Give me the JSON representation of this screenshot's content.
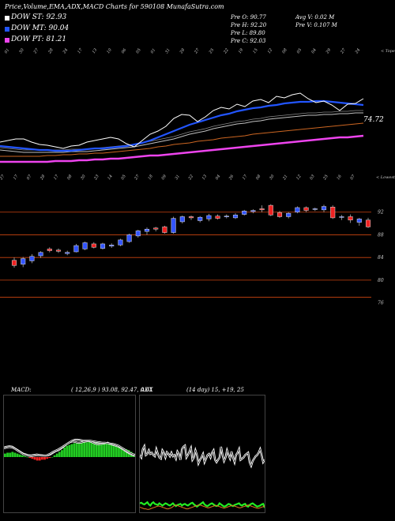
{
  "header": {
    "title": "Price,Volume,EMA,ADX,MACD Charts for 590108  MunafaSutra.com"
  },
  "legend": [
    {
      "label": "DOW ST: 92.93",
      "color": "#ffffff"
    },
    {
      "label": "DOW MT: 90.04",
      "color": "#2255ff"
    },
    {
      "label": "DOW PT: 81.21",
      "color": "#ee44ee"
    }
  ],
  "ohlc": {
    "open": "Pre   O: 90.77",
    "high": "Pre   H: 92.20",
    "low": "Pre   L: 89.80",
    "close": "Pre   C: 92.03",
    "avg_volume": "Avg V: 0.02  M",
    "prev_volume": "Pre   V: 0.107 M"
  },
  "ema_panel": {
    "top_label": "< Tope",
    "value_label": "74.72",
    "top_ticks": [
      "01",
      "30",
      "27",
      "28",
      "24",
      "17",
      "13",
      "10",
      "06",
      "05",
      "01",
      "31",
      "28",
      "27",
      "25",
      "22",
      "19",
      "15",
      "12",
      "08",
      "05",
      "04",
      "29",
      "27",
      "24"
    ],
    "colors": {
      "price": "#ffffff",
      "short": "#2255ff",
      "mid": "#c0c0c0",
      "long": "#cc6622",
      "longest": "#ee44ee"
    }
  },
  "candle_panel": {
    "top_label": "< Lowest",
    "dates": [
      "27",
      "25",
      "21",
      "17",
      "13",
      "10",
      "07",
      "04",
      "31",
      "28",
      "25",
      "22",
      "17",
      "14",
      "11",
      "08",
      "05",
      "02",
      "30",
      "29",
      "26",
      "23",
      "20",
      "17",
      "14",
      "11",
      "08",
      "05",
      "02",
      "30",
      "27",
      "24",
      "21",
      "18",
      "15",
      "12",
      "09",
      "06",
      "03",
      "31",
      "28",
      "25",
      "22",
      "19",
      "16",
      "13",
      "10",
      "07",
      "04",
      "01",
      "29",
      "26",
      "23",
      "20",
      "17",
      "14",
      "11",
      "08",
      "05",
      "02",
      "30",
      "27",
      "24",
      "21",
      "18",
      "15",
      "12",
      "09",
      "06",
      "03",
      "31",
      "28",
      "25",
      "22",
      "19",
      "16",
      "13",
      "10",
      "07",
      "04",
      "01"
    ],
    "right_ticks": [
      "92",
      "88",
      "84",
      "80",
      "76"
    ],
    "orange_lines": [
      92,
      88,
      84,
      80,
      77
    ]
  },
  "chart_data": {
    "type": "candlestick",
    "ylim": [
      74,
      96
    ],
    "candles": [
      {
        "o": 83.5,
        "h": 84.0,
        "l": 82.2,
        "c": 82.6,
        "up": false
      },
      {
        "o": 82.8,
        "h": 84.1,
        "l": 82.3,
        "c": 83.8,
        "up": true
      },
      {
        "o": 83.4,
        "h": 84.6,
        "l": 83.0,
        "c": 84.2,
        "up": true
      },
      {
        "o": 84.3,
        "h": 85.1,
        "l": 83.9,
        "c": 84.9,
        "up": true
      },
      {
        "o": 85.5,
        "h": 85.8,
        "l": 84.9,
        "c": 85.2,
        "up": false
      },
      {
        "o": 85.3,
        "h": 85.6,
        "l": 84.8,
        "c": 85.1,
        "up": false
      },
      {
        "o": 84.7,
        "h": 85.2,
        "l": 84.4,
        "c": 84.9,
        "up": true
      },
      {
        "o": 85.0,
        "h": 86.4,
        "l": 84.9,
        "c": 86.1,
        "up": true
      },
      {
        "o": 85.5,
        "h": 86.8,
        "l": 85.3,
        "c": 86.6,
        "up": true
      },
      {
        "o": 86.4,
        "h": 86.7,
        "l": 85.6,
        "c": 85.8,
        "up": false
      },
      {
        "o": 85.6,
        "h": 86.6,
        "l": 85.4,
        "c": 86.4,
        "up": true
      },
      {
        "o": 86.0,
        "h": 86.5,
        "l": 85.7,
        "c": 86.2,
        "up": true
      },
      {
        "o": 86.2,
        "h": 87.3,
        "l": 86.0,
        "c": 87.1,
        "up": true
      },
      {
        "o": 86.8,
        "h": 88.2,
        "l": 86.6,
        "c": 88.0,
        "up": true
      },
      {
        "o": 87.8,
        "h": 88.9,
        "l": 87.5,
        "c": 88.7,
        "up": true
      },
      {
        "o": 88.6,
        "h": 89.3,
        "l": 88.0,
        "c": 89.0,
        "up": true
      },
      {
        "o": 89.0,
        "h": 89.4,
        "l": 88.6,
        "c": 89.2,
        "up": false
      },
      {
        "o": 89.4,
        "h": 89.6,
        "l": 88.2,
        "c": 88.4,
        "up": false
      },
      {
        "o": 88.4,
        "h": 91.2,
        "l": 88.2,
        "c": 90.9,
        "up": true
      },
      {
        "o": 90.3,
        "h": 91.4,
        "l": 90.0,
        "c": 91.2,
        "up": true
      },
      {
        "o": 91.2,
        "h": 91.4,
        "l": 90.6,
        "c": 91.0,
        "up": false
      },
      {
        "o": 90.5,
        "h": 91.3,
        "l": 90.2,
        "c": 91.1,
        "up": true
      },
      {
        "o": 90.8,
        "h": 91.7,
        "l": 90.4,
        "c": 91.4,
        "up": true
      },
      {
        "o": 91.3,
        "h": 91.6,
        "l": 90.7,
        "c": 90.9,
        "up": false
      },
      {
        "o": 91.2,
        "h": 91.6,
        "l": 90.9,
        "c": 91.3,
        "up": true
      },
      {
        "o": 91.0,
        "h": 91.8,
        "l": 90.8,
        "c": 91.5,
        "up": true
      },
      {
        "o": 91.6,
        "h": 92.4,
        "l": 91.4,
        "c": 92.2,
        "up": true
      },
      {
        "o": 92.1,
        "h": 92.5,
        "l": 91.8,
        "c": 92.3,
        "up": true
      },
      {
        "o": 92.6,
        "h": 93.2,
        "l": 92.0,
        "c": 92.4,
        "up": false
      },
      {
        "o": 93.2,
        "h": 93.4,
        "l": 91.3,
        "c": 91.5,
        "up": false
      },
      {
        "o": 91.9,
        "h": 92.2,
        "l": 91.0,
        "c": 91.2,
        "up": false
      },
      {
        "o": 91.2,
        "h": 92.0,
        "l": 90.9,
        "c": 91.8,
        "up": true
      },
      {
        "o": 92.0,
        "h": 93.0,
        "l": 91.8,
        "c": 92.8,
        "up": true
      },
      {
        "o": 92.8,
        "h": 93.0,
        "l": 92.0,
        "c": 92.3,
        "up": false
      },
      {
        "o": 92.5,
        "h": 92.8,
        "l": 92.2,
        "c": 92.6,
        "up": true
      },
      {
        "o": 92.4,
        "h": 93.3,
        "l": 92.0,
        "c": 93.0,
        "up": true
      },
      {
        "o": 92.9,
        "h": 93.2,
        "l": 90.8,
        "c": 91.0,
        "up": false
      },
      {
        "o": 91.2,
        "h": 91.5,
        "l": 90.6,
        "c": 91.2,
        "up": true
      },
      {
        "o": 91.2,
        "h": 91.6,
        "l": 90.1,
        "c": 90.6,
        "up": false
      },
      {
        "o": 90.2,
        "h": 91.0,
        "l": 89.6,
        "c": 90.8,
        "up": true
      },
      {
        "o": 90.6,
        "h": 91.0,
        "l": 89.2,
        "c": 89.4,
        "up": false
      }
    ],
    "ema_lines": {
      "price": [
        180,
        178,
        176,
        176,
        180,
        183,
        184,
        186,
        188,
        185,
        184,
        180,
        178,
        176,
        174,
        176,
        182,
        186,
        178,
        170,
        166,
        160,
        150,
        145,
        146,
        154,
        148,
        140,
        136,
        138,
        132,
        135,
        128,
        126,
        130,
        122,
        124,
        120,
        118,
        125,
        130,
        128,
        133,
        140,
        132,
        131,
        125
      ],
      "short": [
        185,
        186,
        187,
        188,
        189,
        190,
        190,
        191,
        191,
        191,
        190,
        189,
        188,
        188,
        187,
        186,
        185,
        183,
        181,
        178,
        174,
        170,
        166,
        162,
        158,
        155,
        152,
        149,
        146,
        144,
        141,
        139,
        137,
        136,
        134,
        133,
        131,
        130,
        129,
        129,
        128,
        128,
        129,
        130,
        131,
        132,
        133
      ],
      "mid": [
        190,
        191,
        192,
        193,
        193,
        193,
        193,
        193,
        193,
        192,
        192,
        192,
        191,
        190,
        189,
        188,
        187,
        186,
        184,
        182,
        180,
        178,
        176,
        173,
        170,
        168,
        166,
        163,
        161,
        159,
        157,
        156,
        154,
        153,
        151,
        150,
        149,
        148,
        147,
        146,
        146,
        145,
        145,
        144,
        144,
        143,
        143
      ],
      "long": [
        198,
        198,
        198,
        198,
        198,
        198,
        197,
        197,
        196,
        196,
        195,
        195,
        194,
        194,
        193,
        192,
        191,
        190,
        189,
        188,
        186,
        185,
        183,
        182,
        181,
        179,
        178,
        177,
        175,
        174,
        173,
        172,
        170,
        169,
        168,
        167,
        166,
        165,
        164,
        163,
        162,
        161,
        160,
        159,
        158,
        157,
        156
      ],
      "longest": [
        205,
        205,
        205,
        205,
        205,
        205,
        205,
        204,
        204,
        204,
        203,
        203,
        202,
        202,
        201,
        201,
        200,
        199,
        198,
        197,
        197,
        196,
        195,
        194,
        193,
        192,
        191,
        190,
        189,
        188,
        187,
        186,
        185,
        184,
        183,
        182,
        181,
        180,
        179,
        178,
        177,
        176,
        175,
        174,
        174,
        173,
        172
      ]
    }
  },
  "macd_panel": {
    "label": "MACD:",
    "values": "( 12,26,9 ) 93.08,  92.47,  0.61",
    "hist": [
      4,
      5,
      5,
      6,
      5,
      4,
      3,
      2,
      1,
      0,
      -1,
      -2,
      -3,
      -4,
      -4,
      -3,
      -3,
      -2,
      -1,
      0,
      2,
      4,
      6,
      8,
      11,
      13,
      14,
      15,
      16,
      16,
      17,
      17,
      17,
      17,
      18,
      18,
      18,
      18,
      18,
      17,
      17,
      16,
      15,
      14,
      13,
      12,
      12,
      11,
      10,
      9,
      8,
      6,
      4
    ],
    "line_a": [
      22,
      24,
      25,
      24,
      20,
      16,
      12,
      8,
      6,
      4,
      4,
      5,
      6,
      5,
      4,
      3,
      4,
      6,
      10,
      14,
      16,
      20,
      25,
      30,
      34,
      36,
      35,
      33,
      33,
      35,
      36,
      37,
      35,
      32,
      30,
      30,
      31,
      32,
      33,
      30,
      28,
      26,
      24,
      20,
      16,
      12,
      8,
      5,
      3
    ],
    "line_b": [
      20,
      22,
      23,
      22,
      19,
      15,
      11,
      7,
      5,
      3,
      2,
      3,
      4,
      4,
      3,
      3,
      5,
      8,
      12,
      15,
      18,
      22,
      26,
      30,
      34,
      38,
      40,
      40,
      39,
      38,
      38,
      38,
      37,
      36,
      35,
      34,
      33,
      33,
      32,
      31,
      30,
      28,
      26,
      22,
      18,
      14,
      10,
      7,
      5
    ]
  },
  "adx_panel": {
    "label": "ADX",
    "values": "(14  day) 15,  +19,  25",
    "plus_di": [
      70,
      66,
      80,
      85,
      70,
      72,
      78,
      72,
      74,
      70,
      68,
      80,
      72,
      66,
      64,
      78,
      74,
      66,
      75,
      72,
      68,
      74,
      68,
      70,
      64,
      76,
      72,
      62,
      80,
      84,
      86,
      66,
      70,
      76,
      82,
      62,
      66,
      78,
      70,
      56,
      62,
      66,
      72,
      58,
      64,
      70,
      72,
      66,
      74,
      78,
      62,
      58,
      62,
      66,
      84,
      70,
      60,
      66,
      78,
      70,
      64,
      76,
      66,
      58,
      70,
      74,
      80,
      62,
      64,
      66,
      70,
      72,
      74,
      58,
      52,
      60,
      64,
      68,
      70,
      74,
      80,
      70,
      58,
      62
    ],
    "minus_di": [
      22,
      23,
      21,
      20,
      22,
      24,
      20,
      18,
      22,
      24,
      21,
      20,
      19,
      22,
      20,
      18,
      20,
      22,
      21,
      19,
      18,
      20,
      22,
      19,
      17,
      19,
      20,
      21,
      18,
      20,
      21,
      19,
      18,
      20,
      22,
      23,
      20,
      18,
      16,
      18,
      20,
      22,
      24,
      20,
      18,
      17,
      19,
      21,
      22,
      20,
      18,
      17,
      18,
      22,
      20,
      18,
      16,
      17,
      19,
      21,
      20,
      18,
      17,
      19,
      20,
      21,
      22,
      19,
      18,
      20,
      21,
      17,
      16,
      19,
      21,
      22,
      20,
      18,
      16,
      17,
      18,
      20,
      21,
      14
    ],
    "adx": [
      15,
      14,
      13,
      12,
      12,
      11,
      11,
      12,
      13,
      14,
      15,
      16,
      17,
      17,
      16,
      15,
      14,
      13,
      12,
      12,
      13,
      14,
      16,
      18,
      19,
      18,
      17,
      16,
      15,
      14,
      13,
      12,
      12,
      13,
      14,
      15,
      16,
      17,
      18,
      19,
      19,
      18,
      17,
      16,
      15,
      14,
      14,
      15,
      16,
      17,
      18,
      18,
      17,
      16,
      15,
      14,
      13,
      14,
      15,
      16,
      17,
      18,
      18,
      17,
      16,
      15,
      14,
      14,
      15,
      16,
      17,
      18,
      19,
      18,
      17,
      16,
      15,
      14,
      13,
      13,
      14,
      15,
      16,
      17
    ]
  }
}
